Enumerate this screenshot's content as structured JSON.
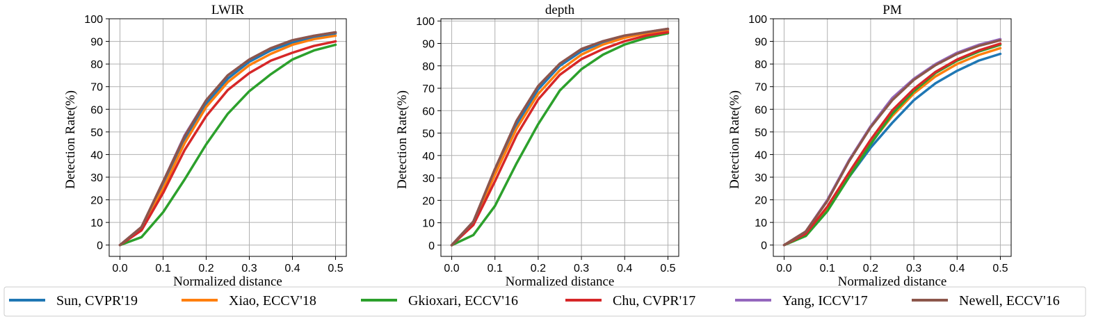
{
  "chart_data": [
    {
      "type": "line",
      "title": "LWIR",
      "xlabel": "Normalized distance",
      "ylabel": "Detection Rate(%)",
      "x": [
        0.0,
        0.05,
        0.1,
        0.15,
        0.2,
        0.25,
        0.3,
        0.35,
        0.4,
        0.45,
        0.5
      ],
      "xlim": [
        -0.025,
        0.525
      ],
      "ylim": [
        -5,
        100
      ],
      "xticks": [
        0.0,
        0.1,
        0.2,
        0.3,
        0.4,
        0.5
      ],
      "xtick_labels": [
        "0.0",
        "0.1",
        "0.2",
        "0.3",
        "0.4",
        "0.5"
      ],
      "yticks": [
        0,
        10,
        20,
        30,
        40,
        50,
        60,
        70,
        80,
        90,
        100
      ],
      "ytick_labels": [
        "0",
        "10",
        "20",
        "30",
        "40",
        "50",
        "60",
        "70",
        "80",
        "90",
        "100"
      ],
      "grid": true,
      "series": [
        {
          "name": "Sun, CVPR'19",
          "color": "#1f77b4",
          "values": [
            0,
            7.5,
            26,
            46,
            62.5,
            73.5,
            81,
            86,
            89.5,
            91.8,
            93.5
          ]
        },
        {
          "name": "Xiao, ECCV'18",
          "color": "#ff7f0e",
          "values": [
            0,
            7,
            25,
            45,
            61,
            72,
            79.5,
            84.5,
            88.5,
            91,
            92.5
          ]
        },
        {
          "name": "Gkioxari, ECCV'16",
          "color": "#2ca02c",
          "values": [
            0,
            3.5,
            14.5,
            29,
            44.5,
            58,
            68,
            75.5,
            82,
            86,
            88.5
          ]
        },
        {
          "name": "Chu, CVPR'17",
          "color": "#d62728",
          "values": [
            0,
            6.5,
            23,
            42,
            57,
            68.5,
            76,
            81.5,
            85,
            88,
            90
          ]
        },
        {
          "name": "Yang, ICCV'17",
          "color": "#9467bd",
          "values": [
            0,
            8,
            28,
            48.5,
            64,
            75,
            82,
            87,
            90.5,
            92.5,
            94
          ]
        },
        {
          "name": "Newell, ECCV'16",
          "color": "#8c564b",
          "values": [
            0,
            8,
            28,
            48,
            64,
            75,
            82,
            87,
            90.5,
            92.5,
            94
          ]
        }
      ]
    },
    {
      "type": "line",
      "title": "depth",
      "xlabel": "Normalized distance",
      "ylabel": "Detection Rate(%)",
      "x": [
        0.0,
        0.05,
        0.1,
        0.15,
        0.2,
        0.25,
        0.3,
        0.35,
        0.4,
        0.45,
        0.5
      ],
      "xlim": [
        -0.025,
        0.525
      ],
      "ylim": [
        -5,
        101
      ],
      "xticks": [
        0.0,
        0.1,
        0.2,
        0.3,
        0.4,
        0.5
      ],
      "xtick_labels": [
        "0.0",
        "0.1",
        "0.2",
        "0.3",
        "0.4",
        "0.5"
      ],
      "yticks": [
        0,
        10,
        20,
        30,
        40,
        50,
        60,
        70,
        80,
        90,
        100
      ],
      "ytick_labels": [
        "0",
        "10",
        "20",
        "30",
        "40",
        "50",
        "60",
        "70",
        "80",
        "90",
        "100"
      ],
      "grid": true,
      "series": [
        {
          "name": "Sun, CVPR'19",
          "color": "#1f77b4",
          "values": [
            0,
            10.5,
            33,
            54,
            69.5,
            80,
            86.5,
            90.5,
            93,
            95,
            96
          ]
        },
        {
          "name": "Xiao, ECCV'18",
          "color": "#ff7f0e",
          "values": [
            0,
            10,
            31.5,
            52,
            67.5,
            78,
            85,
            89.5,
            92.5,
            94.5,
            95.5
          ]
        },
        {
          "name": "Gkioxari, ECCV'16",
          "color": "#2ca02c",
          "values": [
            0,
            4.5,
            17.5,
            36.5,
            54,
            69,
            78.5,
            85,
            89.5,
            92.5,
            94.5
          ]
        },
        {
          "name": "Chu, CVPR'17",
          "color": "#d62728",
          "values": [
            0,
            9,
            28.5,
            49,
            65,
            76,
            83,
            87.5,
            91,
            93.5,
            95
          ]
        },
        {
          "name": "Yang, ICCV'17",
          "color": "#9467bd",
          "values": [
            0,
            10.5,
            34,
            55.5,
            71,
            81,
            87.5,
            91,
            93.5,
            95,
            96.5
          ]
        },
        {
          "name": "Newell, ECCV'16",
          "color": "#8c564b",
          "values": [
            0,
            10.5,
            34,
            55.5,
            71,
            81,
            87.5,
            91,
            93.5,
            95,
            96.5
          ]
        }
      ]
    },
    {
      "type": "line",
      "title": "PM",
      "xlabel": "Normalized distance",
      "ylabel": "Detection Rate(%)",
      "x": [
        0.0,
        0.05,
        0.1,
        0.15,
        0.2,
        0.25,
        0.3,
        0.35,
        0.4,
        0.45,
        0.5
      ],
      "xlim": [
        -0.025,
        0.525
      ],
      "ylim": [
        -5,
        100
      ],
      "xticks": [
        0.0,
        0.1,
        0.2,
        0.3,
        0.4,
        0.5
      ],
      "xtick_labels": [
        "0.0",
        "0.1",
        "0.2",
        "0.3",
        "0.4",
        "0.5"
      ],
      "yticks": [
        0,
        10,
        20,
        30,
        40,
        50,
        60,
        70,
        80,
        90,
        100
      ],
      "ytick_labels": [
        "0",
        "10",
        "20",
        "30",
        "40",
        "50",
        "60",
        "70",
        "80",
        "90",
        "100"
      ],
      "grid": true,
      "series": [
        {
          "name": "Sun, CVPR'19",
          "color": "#1f77b4",
          "values": [
            0,
            5,
            16,
            30,
            43,
            54,
            64,
            71.5,
            77,
            81.5,
            84.5
          ]
        },
        {
          "name": "Xiao, ECCV'18",
          "color": "#ff7f0e",
          "values": [
            0,
            4.5,
            16,
            31,
            45,
            57,
            67,
            74.5,
            80,
            84,
            87
          ]
        },
        {
          "name": "Gkioxari, ECCV'16",
          "color": "#2ca02c",
          "values": [
            0,
            4,
            15,
            30,
            44.5,
            58,
            68,
            76,
            81.5,
            85.5,
            88.5
          ]
        },
        {
          "name": "Chu, CVPR'17",
          "color": "#d62728",
          "values": [
            0,
            5,
            17,
            32,
            46.5,
            59.5,
            69,
            76.5,
            82,
            86,
            89
          ]
        },
        {
          "name": "Yang, ICCV'17",
          "color": "#9467bd",
          "values": [
            0,
            6,
            20,
            37.5,
            52.5,
            65,
            73.5,
            80,
            85,
            88.5,
            91
          ]
        },
        {
          "name": "Newell, ECCV'16",
          "color": "#8c564b",
          "values": [
            0,
            6,
            19.5,
            37,
            52,
            64,
            73,
            79.5,
            84.5,
            88,
            90.5
          ]
        }
      ]
    }
  ],
  "legend": {
    "placement": "bottom",
    "entries": [
      {
        "label": "Sun, CVPR'19",
        "color": "#1f77b4"
      },
      {
        "label": "Xiao, ECCV'18",
        "color": "#ff7f0e"
      },
      {
        "label": "Gkioxari, ECCV'16",
        "color": "#2ca02c"
      },
      {
        "label": "Chu, CVPR'17",
        "color": "#d62728"
      },
      {
        "label": "Yang, ICCV'17",
        "color": "#9467bd"
      },
      {
        "label": "Newell, ECCV'16",
        "color": "#8c564b"
      }
    ]
  }
}
